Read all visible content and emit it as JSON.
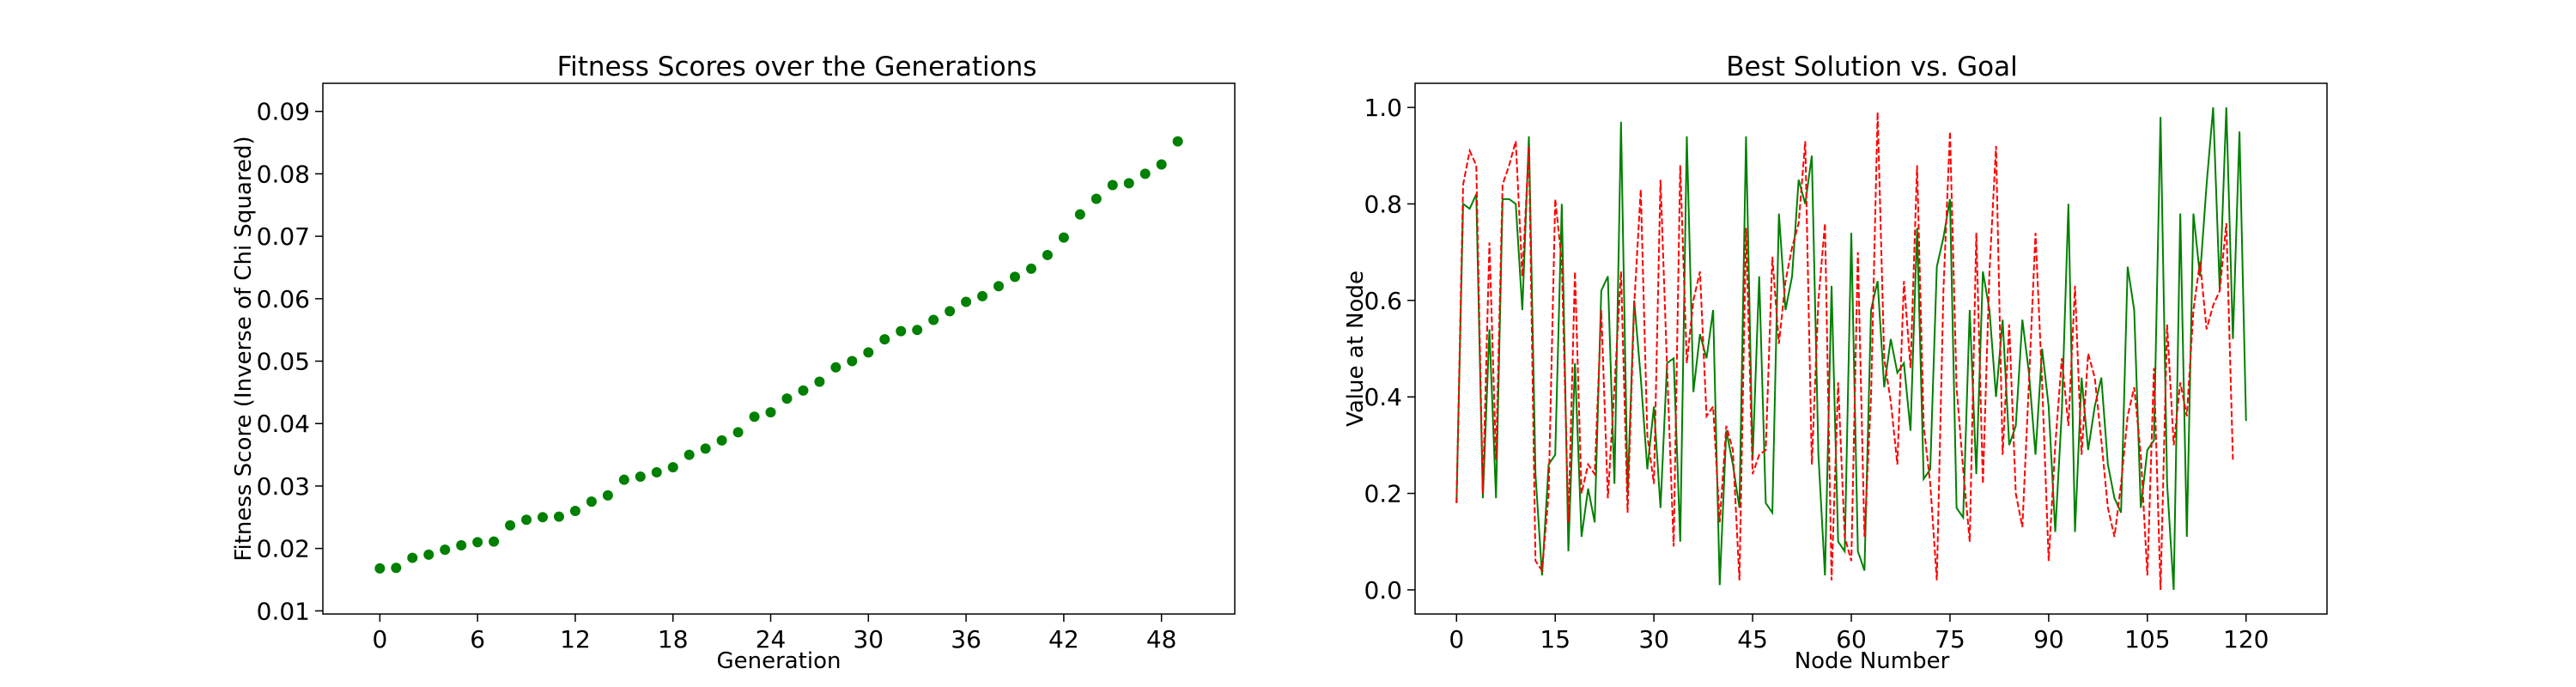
{
  "chart_data": [
    {
      "type": "scatter",
      "title": "Fitness Scores over the Generations",
      "xlabel": "Generation",
      "ylabel": "Fitness Score (Inverse of Chi Squared)",
      "xlim": [
        -3.5,
        52.5
      ],
      "ylim": [
        0.0095,
        0.0945
      ],
      "xticks": [
        0,
        6,
        12,
        18,
        24,
        30,
        36,
        42,
        48
      ],
      "yticks": [
        0.01,
        0.02,
        0.03,
        0.04,
        0.05,
        0.06,
        0.07,
        0.08,
        0.09
      ],
      "ytick_labels": [
        "0.01",
        "0.02",
        "0.03",
        "0.04",
        "0.05",
        "0.06",
        "0.07",
        "0.08",
        "0.09"
      ],
      "grid": false,
      "series": [
        {
          "color": "#008000",
          "marker": "circle",
          "x": [
            0,
            1,
            2,
            3,
            4,
            5,
            6,
            7,
            8,
            9,
            10,
            11,
            12,
            13,
            14,
            15,
            16,
            17,
            18,
            19,
            20,
            21,
            22,
            23,
            24,
            25,
            26,
            27,
            28,
            29,
            30,
            31,
            32,
            33,
            34,
            35,
            36,
            37,
            38,
            39,
            40,
            41,
            42,
            43,
            44,
            45,
            46,
            47,
            48,
            49
          ],
          "y": [
            0.0168,
            0.0169,
            0.0185,
            0.019,
            0.0198,
            0.0205,
            0.021,
            0.0211,
            0.0237,
            0.0246,
            0.025,
            0.0251,
            0.026,
            0.0275,
            0.0285,
            0.031,
            0.0315,
            0.0322,
            0.033,
            0.035,
            0.036,
            0.0373,
            0.0386,
            0.0411,
            0.0418,
            0.044,
            0.0453,
            0.0467,
            0.049,
            0.05,
            0.0514,
            0.0535,
            0.0548,
            0.055,
            0.0566,
            0.058,
            0.0595,
            0.0604,
            0.062,
            0.0635,
            0.0648,
            0.067,
            0.0698,
            0.0735,
            0.076,
            0.0782,
            0.0785,
            0.08,
            0.0815,
            0.0852
          ]
        }
      ]
    },
    {
      "type": "line",
      "title": "Best Solution vs. Goal",
      "xlabel": "Node Number",
      "ylabel": "Value at Node",
      "xlim": [
        -6.3,
        132.3
      ],
      "ylim": [
        -0.05,
        1.05
      ],
      "xticks": [
        0,
        15,
        30,
        45,
        60,
        75,
        90,
        105,
        120
      ],
      "yticks": [
        0.0,
        0.2,
        0.4,
        0.6,
        0.8,
        1.0
      ],
      "ytick_labels": [
        "0.0",
        "0.2",
        "0.4",
        "0.6",
        "0.8",
        "1.0"
      ],
      "grid": false,
      "x_start": 0,
      "series": [
        {
          "color": "#008000",
          "dash": "solid",
          "values": [
            0.18,
            0.8,
            0.79,
            0.82,
            0.19,
            0.54,
            0.19,
            0.81,
            0.81,
            0.8,
            0.58,
            0.94,
            0.24,
            0.03,
            0.26,
            0.28,
            0.8,
            0.08,
            0.47,
            0.11,
            0.21,
            0.14,
            0.62,
            0.65,
            0.22,
            0.97,
            0.2,
            0.6,
            0.44,
            0.25,
            0.38,
            0.17,
            0.47,
            0.48,
            0.1,
            0.94,
            0.41,
            0.53,
            0.48,
            0.58,
            0.01,
            0.33,
            0.26,
            0.17,
            0.94,
            0.27,
            0.65,
            0.18,
            0.16,
            0.78,
            0.58,
            0.65,
            0.85,
            0.8,
            0.9,
            0.28,
            0.03,
            0.63,
            0.1,
            0.08,
            0.74,
            0.08,
            0.04,
            0.58,
            0.64,
            0.42,
            0.52,
            0.45,
            0.47,
            0.33,
            0.75,
            0.23,
            0.25,
            0.67,
            0.73,
            0.81,
            0.17,
            0.15,
            0.58,
            0.24,
            0.66,
            0.58,
            0.4,
            0.56,
            0.3,
            0.34,
            0.56,
            0.45,
            0.28,
            0.5,
            0.38,
            0.12,
            0.37,
            0.8,
            0.12,
            0.44,
            0.29,
            0.38,
            0.44,
            0.26,
            0.19,
            0.16,
            0.67,
            0.58,
            0.17,
            0.29,
            0.31,
            0.98,
            0.22,
            0.0,
            0.78,
            0.11,
            0.78,
            0.65,
            0.84,
            1.0,
            0.62,
            1.0,
            0.52,
            0.95,
            0.35
          ]
        },
        {
          "color": "#ff0000",
          "dash": "dashed",
          "values": [
            0.18,
            0.84,
            0.91,
            0.88,
            0.2,
            0.72,
            0.27,
            0.84,
            0.88,
            0.93,
            0.65,
            0.92,
            0.06,
            0.04,
            0.2,
            0.81,
            0.68,
            0.14,
            0.66,
            0.2,
            0.26,
            0.24,
            0.58,
            0.19,
            0.42,
            0.66,
            0.16,
            0.59,
            0.83,
            0.32,
            0.22,
            0.85,
            0.46,
            0.09,
            0.88,
            0.47,
            0.6,
            0.66,
            0.36,
            0.38,
            0.14,
            0.34,
            0.29,
            0.02,
            0.75,
            0.24,
            0.28,
            0.29,
            0.69,
            0.51,
            0.64,
            0.71,
            0.76,
            0.93,
            0.26,
            0.6,
            0.76,
            0.02,
            0.43,
            0.11,
            0.06,
            0.7,
            0.11,
            0.4,
            0.99,
            0.48,
            0.39,
            0.26,
            0.64,
            0.46,
            0.88,
            0.34,
            0.22,
            0.02,
            0.62,
            0.95,
            0.42,
            0.25,
            0.1,
            0.74,
            0.22,
            0.66,
            0.92,
            0.28,
            0.55,
            0.2,
            0.13,
            0.43,
            0.74,
            0.43,
            0.06,
            0.3,
            0.48,
            0.34,
            0.63,
            0.28,
            0.49,
            0.44,
            0.31,
            0.17,
            0.11,
            0.22,
            0.36,
            0.42,
            0.28,
            0.03,
            0.46,
            0.0,
            0.55,
            0.3,
            0.43,
            0.36,
            0.58,
            0.68,
            0.54,
            0.59,
            0.62,
            0.76,
            0.27
          ]
        }
      ]
    }
  ]
}
